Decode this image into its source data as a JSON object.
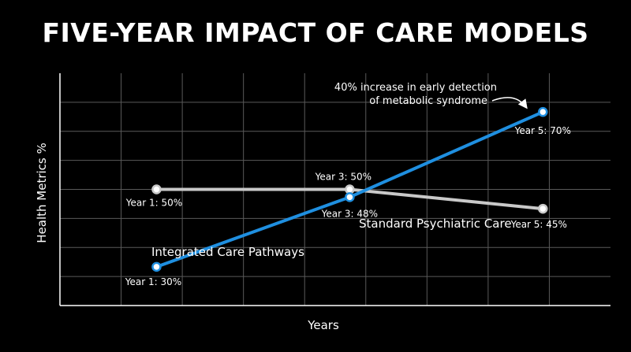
{
  "title": "FIVE-YEAR IMPACT OF CARE MODELS",
  "colors": {
    "background": "#000000",
    "grid": "#5a5a5a",
    "integrated": "#1f8fe0",
    "standard": "#c9c9c9",
    "text": "#ffffff"
  },
  "chart_data": {
    "type": "line",
    "title": "FIVE-YEAR IMPACT OF CARE MODELS",
    "xlabel": "Years",
    "ylabel": "Health Metrics %",
    "xlim": [
      0.0,
      5.7
    ],
    "ylim": [
      20,
      80
    ],
    "grid": true,
    "legend": "none",
    "series": [
      {
        "name": "Integrated Care Pathways",
        "color": "#1f8fe0",
        "x": [
          1,
          3,
          5
        ],
        "y": [
          30,
          48,
          70
        ],
        "point_labels": [
          "Year 1: 30%",
          "Year 3: 48%",
          "Year 5: 70%"
        ]
      },
      {
        "name": "Standard Psychiatric Care",
        "color": "#c9c9c9",
        "x": [
          1,
          3,
          5
        ],
        "y": [
          50,
          50,
          45
        ],
        "point_labels": [
          "Year 1: 50%",
          "Year 3: 50%",
          "Year 5: 45%"
        ]
      }
    ],
    "annotations": [
      {
        "text_lines": [
          "40% increase in early detection",
          "of metabolic syndrome"
        ]
      }
    ]
  }
}
